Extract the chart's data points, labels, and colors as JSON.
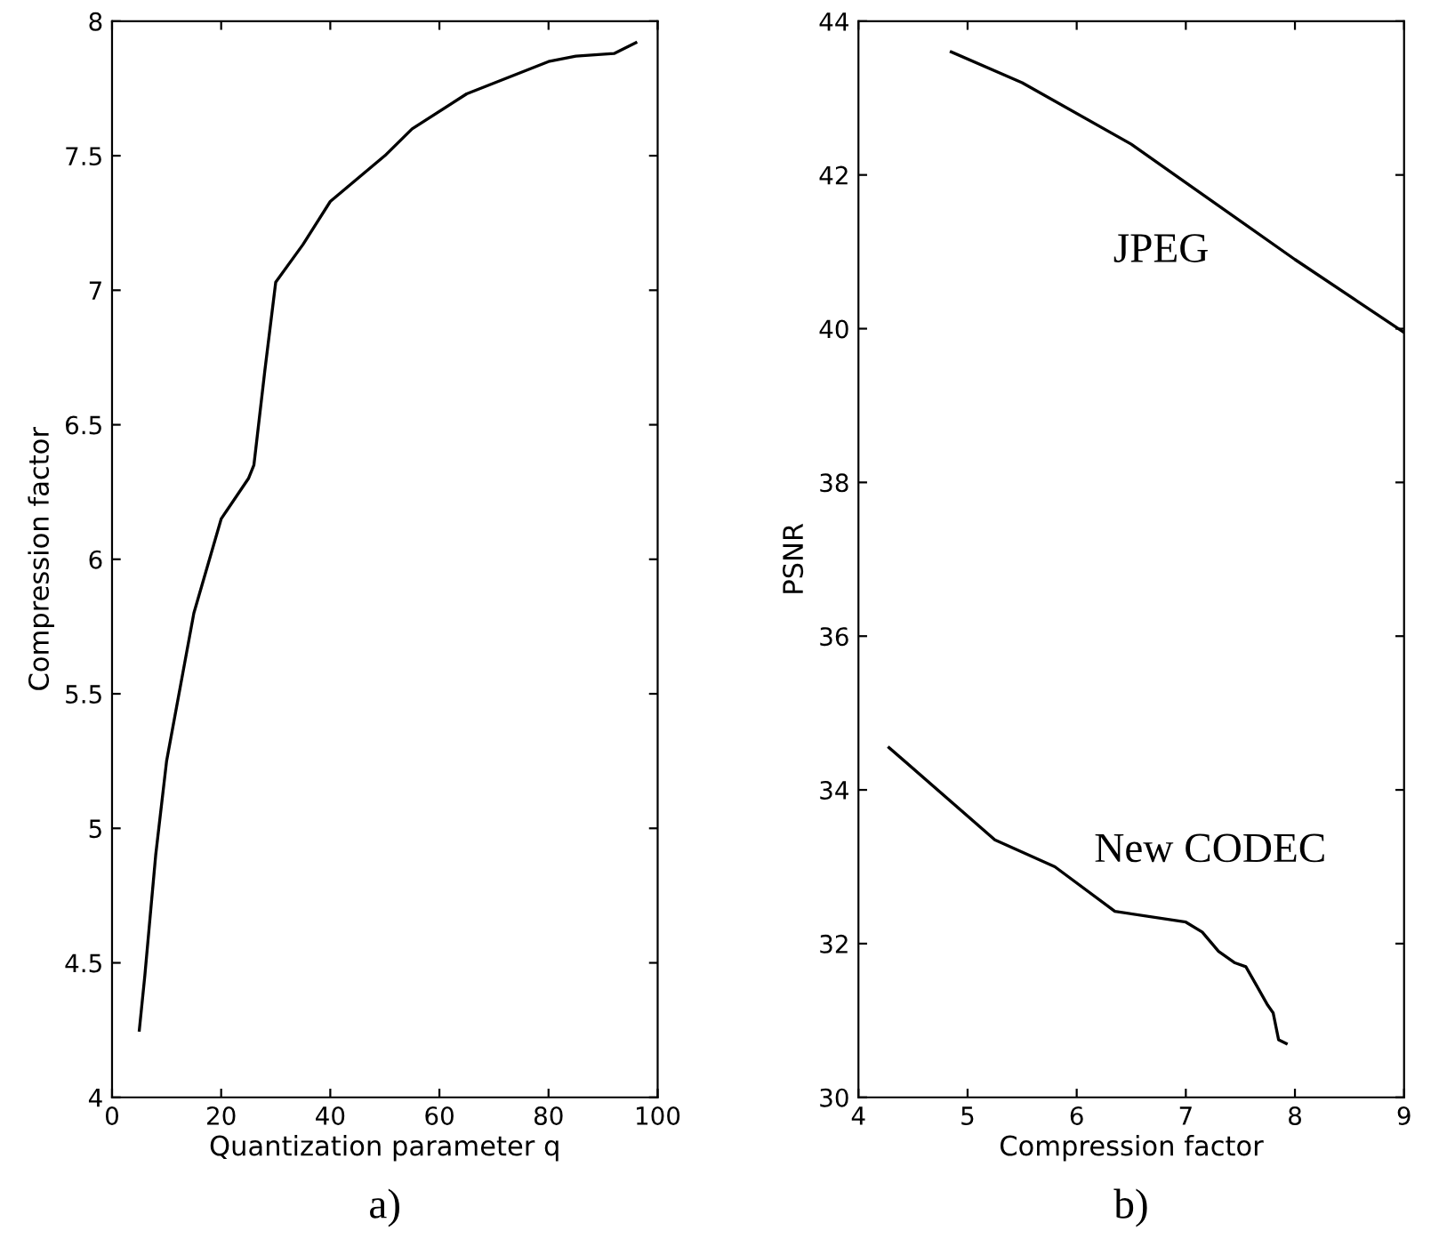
{
  "chart_data": [
    {
      "type": "line",
      "xlabel": "Quantization parameter q",
      "ylabel": "Compression factor",
      "annotations": [
        "a)"
      ],
      "grid": false,
      "legend": false,
      "xlim": [
        0,
        100
      ],
      "ylim": [
        4,
        8
      ],
      "xticks": [
        0,
        20,
        40,
        60,
        80,
        100
      ],
      "yticks": [
        4,
        4.5,
        5,
        5.5,
        6,
        6.5,
        7,
        7.5,
        8
      ],
      "series": [
        {
          "color": "#000000",
          "x": [
            5,
            6,
            8,
            10,
            15,
            20,
            25,
            26,
            28,
            30,
            35,
            40,
            50,
            55,
            65,
            80,
            85,
            92,
            96
          ],
          "values": [
            4.25,
            4.45,
            4.9,
            5.25,
            5.8,
            6.15,
            6.3,
            6.35,
            6.7,
            7.03,
            7.17,
            7.33,
            7.5,
            7.6,
            7.73,
            7.85,
            7.87,
            7.88,
            7.92
          ]
        }
      ]
    },
    {
      "type": "line",
      "xlabel": "Compression factor",
      "ylabel": "PSNR",
      "annotations": [
        "b)"
      ],
      "grid": false,
      "xlim": [
        4,
        9
      ],
      "ylim": [
        30,
        44
      ],
      "xticks": [
        4,
        5,
        6,
        7,
        8,
        9
      ],
      "yticks": [
        30,
        32,
        34,
        36,
        38,
        40,
        42,
        44
      ],
      "series": [
        {
          "name": "JPEG",
          "color": "#000000",
          "x": [
            4.85,
            5.5,
            6.5,
            7,
            8,
            9
          ],
          "values": [
            43.6,
            43.2,
            42.4,
            41.9,
            40.9,
            39.95
          ]
        },
        {
          "name": "New CODEC",
          "color": "#000000",
          "x": [
            4.28,
            5.25,
            5.8,
            6.35,
            7.0,
            7.15,
            7.3,
            7.45,
            7.55,
            7.65,
            7.75,
            7.8,
            7.85,
            7.92
          ],
          "values": [
            34.55,
            33.35,
            33.0,
            32.42,
            32.28,
            32.15,
            31.9,
            31.75,
            31.7,
            31.45,
            31.2,
            31.1,
            30.75,
            30.7
          ]
        }
      ]
    }
  ]
}
